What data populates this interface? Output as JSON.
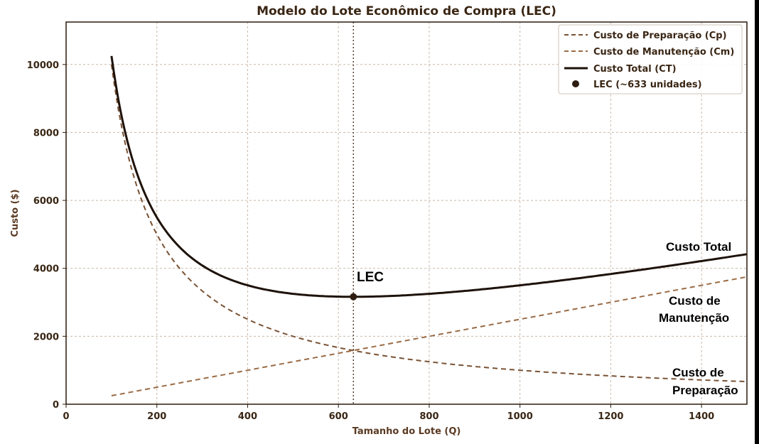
{
  "chart_data": {
    "type": "line",
    "title": "Modelo do Lote Econômico de Compra (LEC)",
    "xlabel": "Tamanho do Lote (Q)",
    "ylabel": "Custo ($)",
    "xlim": [
      0,
      1500
    ],
    "ylim": [
      0,
      11250
    ],
    "xticks": [
      "0",
      "200",
      "400",
      "600",
      "800",
      "1000",
      "1200",
      "1400"
    ],
    "yticks": [
      "0",
      "2000",
      "4000",
      "6000",
      "8000",
      "10000"
    ],
    "grid": true,
    "legend_position": "top-right",
    "x": [
      100,
      150,
      200,
      250,
      300,
      400,
      500,
      633,
      700,
      800,
      1000,
      1200,
      1400,
      1500
    ],
    "series": [
      {
        "name": "Custo de Preparação (Cp)",
        "style": "dashed",
        "color": "#7a5234",
        "values": [
          10000,
          6667,
          5000,
          4000,
          3333,
          2500,
          2000,
          1580,
          1429,
          1250,
          1000,
          833,
          714,
          667
        ]
      },
      {
        "name": "Custo de Manutenção (Cm)",
        "style": "dashed",
        "color": "#9a6b45",
        "values": [
          250,
          375,
          500,
          625,
          750,
          1000,
          1250,
          1583,
          1750,
          2000,
          2500,
          3000,
          3500,
          3750
        ]
      },
      {
        "name": "Custo Total (CT)",
        "style": "solid",
        "color": "#1e120a",
        "values": [
          10250,
          7042,
          5500,
          4625,
          4083,
          3500,
          3250,
          3163,
          3179,
          3250,
          3500,
          3833,
          4214,
          4417
        ]
      }
    ],
    "point": {
      "name": "LEC (~633 unidades)",
      "x": 633,
      "y": 3163,
      "color": "#2e1d10"
    },
    "vline_x": 633,
    "annotations": {
      "lec": "LEC",
      "total_line": "Custo Total",
      "manut_line1": "Custo de",
      "manut_line2": "Manutenção",
      "prep_line1": "Custo de",
      "prep_line2": "Preparação"
    }
  },
  "colors": {
    "grid": "#c9b9aa",
    "axis": "#2a1a0e",
    "background": "#ffffff"
  }
}
